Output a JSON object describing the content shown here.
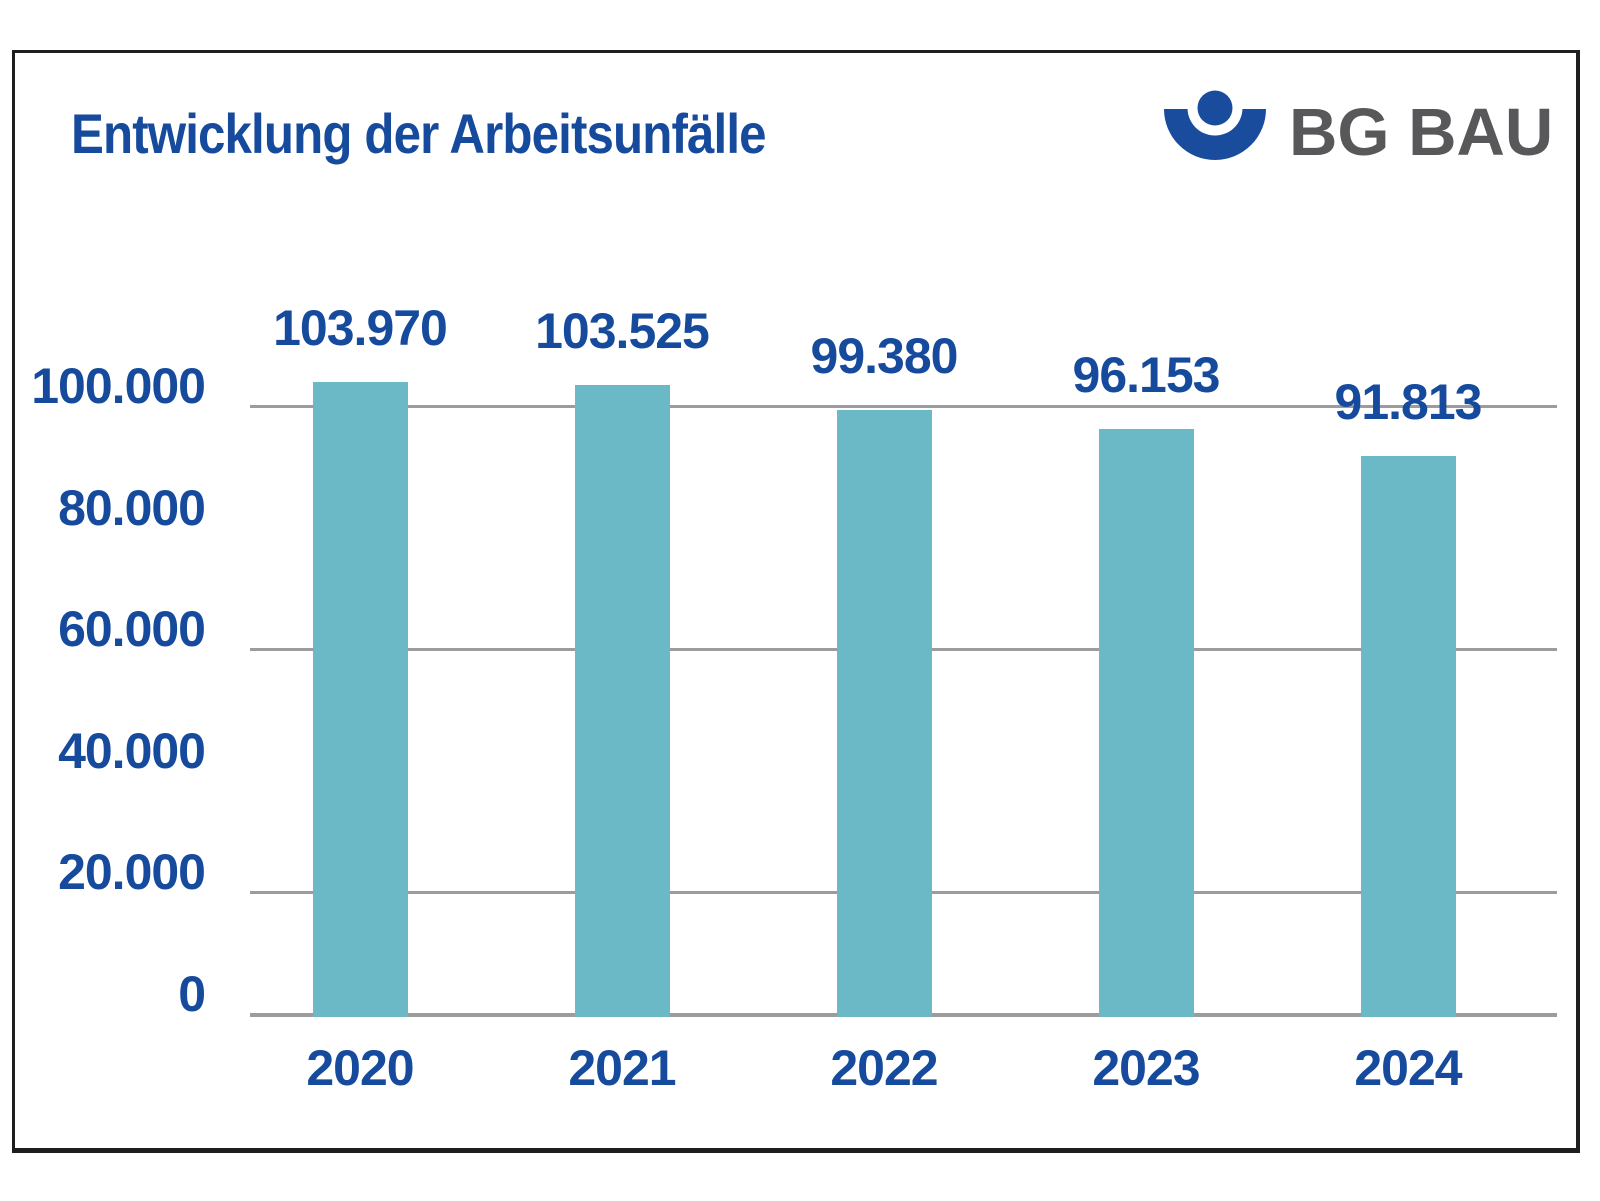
{
  "header": {
    "title": "Entwicklung der Arbeitsunfälle",
    "brand": {
      "name": "BG BAU",
      "icon": "dguv-person-icon"
    }
  },
  "chart_data": {
    "type": "bar",
    "title": "Entwicklung der Arbeitsunfälle",
    "categories": [
      "2020",
      "2021",
      "2022",
      "2023",
      "2024"
    ],
    "values": [
      103970,
      103525,
      99380,
      96153,
      91813
    ],
    "value_labels": [
      "103.970",
      "103.525",
      "99.380",
      "96.153",
      "91.813"
    ],
    "xlabel": "",
    "ylabel": "",
    "ylim": [
      0,
      110000
    ],
    "y_ticks": [
      {
        "value": 100000,
        "label": "100.000",
        "gridline": true
      },
      {
        "value": 80000,
        "label": "80.000",
        "gridline": false
      },
      {
        "value": 60000,
        "label": "60.000",
        "gridline": true
      },
      {
        "value": 40000,
        "label": "40.000",
        "gridline": false
      },
      {
        "value": 20000,
        "label": "20.000",
        "gridline": true
      },
      {
        "value": 0,
        "label": "0",
        "gridline": true
      }
    ],
    "legend": null,
    "grid": "horizontal-partial",
    "bar_color": "#6bb8c6",
    "label_color": "#164a9d"
  },
  "colors": {
    "bar": "#6bb8c6",
    "text_blue": "#164a9d",
    "grid": "#9c9c9c",
    "logo_blue": "#1a4c9e",
    "brand_gray": "#58585a",
    "frame": "#1e1e1e",
    "background": "#ffffff"
  }
}
